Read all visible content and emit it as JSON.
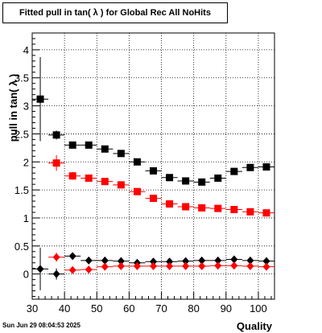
{
  "title": "Fitted pull in tan( λ ) for Global Rec All NoHits",
  "timestamp": "Sun Jun 29 08:04:53 2025",
  "chart_data": {
    "type": "scatter",
    "title": "Fitted pull in tan( λ ) for Global Rec All NoHits",
    "xlabel": "Quality",
    "ylabel": "pull in tan( λ )",
    "xlim": [
      30,
      105
    ],
    "ylim": [
      -0.45,
      4.3
    ],
    "x_ticks": [
      30,
      40,
      50,
      60,
      70,
      80,
      90,
      100
    ],
    "y_ticks": [
      0,
      0.5,
      1,
      1.5,
      2,
      2.5,
      3,
      3.5,
      4
    ],
    "grid": true,
    "x_bin_halfwidth": 2.5,
    "series": [
      {
        "marker": "square",
        "color": "#000000",
        "x": [
          32.5,
          37.5,
          42.5,
          47.5,
          52.5,
          57.5,
          62.5,
          67.5,
          72.5,
          77.5,
          82.5,
          87.5,
          92.5,
          97.5,
          102.5
        ],
        "y": [
          3.12,
          2.48,
          2.3,
          2.3,
          2.23,
          2.15,
          2.0,
          1.84,
          1.72,
          1.66,
          1.64,
          1.71,
          1.83,
          1.9,
          1.91
        ],
        "yerr": [
          0.75,
          0.08,
          0.04,
          0.03,
          0.03,
          0.03,
          0.03,
          0.03,
          0.03,
          0.03,
          0.03,
          0.03,
          0.03,
          0.03,
          0.03
        ]
      },
      {
        "marker": "square",
        "color": "#ff0000",
        "x": [
          37.5,
          42.5,
          47.5,
          52.5,
          57.5,
          62.5,
          67.5,
          72.5,
          77.5,
          82.5,
          87.5,
          92.5,
          97.5,
          102.5
        ],
        "y": [
          1.98,
          1.75,
          1.71,
          1.65,
          1.59,
          1.47,
          1.35,
          1.25,
          1.2,
          1.18,
          1.17,
          1.15,
          1.11,
          1.09
        ],
        "yerr": [
          0.14,
          0.07,
          0.04,
          0.03,
          0.03,
          0.03,
          0.03,
          0.03,
          0.03,
          0.03,
          0.03,
          0.03,
          0.03,
          0.03
        ]
      },
      {
        "marker": "diamond",
        "color": "#000000",
        "x": [
          32.5,
          37.5,
          42.5,
          47.5,
          52.5,
          57.5,
          62.5,
          67.5,
          72.5,
          77.5,
          82.5,
          87.5,
          92.5,
          97.5,
          102.5
        ],
        "y": [
          0.09,
          0.0,
          0.32,
          0.24,
          0.24,
          0.23,
          0.2,
          0.22,
          0.22,
          0.23,
          0.24,
          0.24,
          0.26,
          0.24,
          0.23
        ],
        "yerr": [
          0.38,
          0.1,
          0.05,
          0.03,
          0.03,
          0.03,
          0.03,
          0.03,
          0.03,
          0.03,
          0.03,
          0.03,
          0.03,
          0.03,
          0.03
        ]
      },
      {
        "marker": "diamond",
        "color": "#ff0000",
        "x": [
          37.5,
          42.5,
          47.5,
          52.5,
          57.5,
          62.5,
          67.5,
          72.5,
          77.5,
          82.5,
          87.5,
          92.5,
          97.5,
          102.5
        ],
        "y": [
          0.3,
          0.07,
          0.08,
          0.13,
          0.14,
          0.14,
          0.14,
          0.14,
          0.14,
          0.14,
          0.15,
          0.15,
          0.14,
          0.13
        ],
        "yerr": [
          0.08,
          0.04,
          0.03,
          0.03,
          0.03,
          0.03,
          0.03,
          0.03,
          0.03,
          0.03,
          0.03,
          0.03,
          0.03,
          0.03
        ]
      }
    ]
  }
}
